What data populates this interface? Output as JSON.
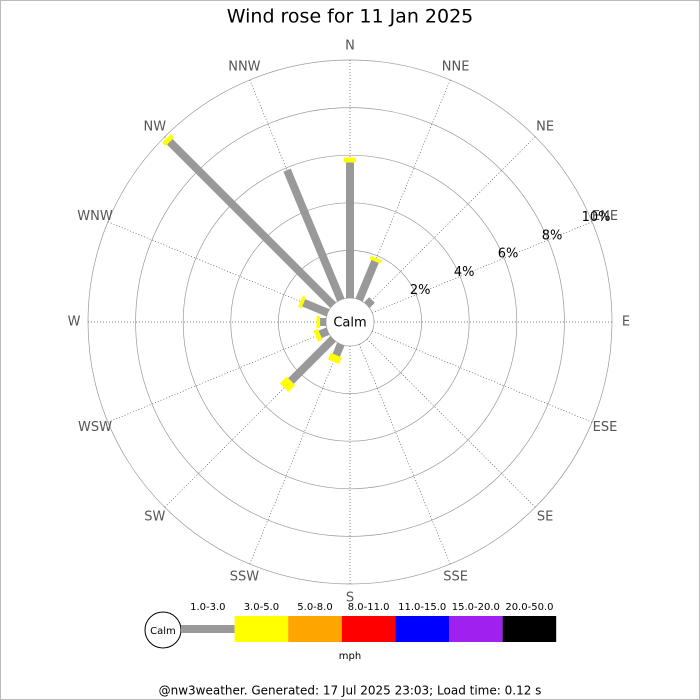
{
  "chart_data": {
    "type": "windrose",
    "title": "Wind rose for 11 Jan 2025",
    "directions": [
      "N",
      "NNE",
      "NE",
      "ENE",
      "E",
      "ESE",
      "SE",
      "SSE",
      "S",
      "SSW",
      "SW",
      "WSW",
      "W",
      "WNW",
      "NW",
      "NNW"
    ],
    "calm_label": "Calm",
    "rlim": [
      0,
      10
    ],
    "rticks": [
      {
        "value": 2,
        "label": "2%"
      },
      {
        "value": 4,
        "label": "4%"
      },
      {
        "value": 6,
        "label": "6%"
      },
      {
        "value": 8,
        "label": "8%"
      },
      {
        "value": 10,
        "label": "10%"
      }
    ],
    "series": [
      {
        "name": "1.0-3.0",
        "color": "#999999",
        "values": [
          5.7,
          1.75,
          0.3,
          0,
          0,
          0,
          0,
          0,
          0,
          0.5,
          2.5,
          0.35,
          0.25,
          1.1,
          9.7,
          5.9
        ]
      },
      {
        "name": "3.0-5.0",
        "color": "#ffff00",
        "values": [
          0.2,
          0.15,
          0,
          0,
          0,
          0,
          0,
          0,
          0,
          0.3,
          0.4,
          0.2,
          0.15,
          0.15,
          0.2,
          0
        ]
      },
      {
        "name": "5.0-8.0",
        "color": "#ffa500",
        "values": [
          0,
          0,
          0,
          0,
          0,
          0,
          0,
          0,
          0,
          0,
          0,
          0,
          0,
          0,
          0,
          0
        ]
      },
      {
        "name": "8.0-11.0",
        "color": "#ff0000",
        "values": [
          0,
          0,
          0,
          0,
          0,
          0,
          0,
          0,
          0,
          0,
          0,
          0,
          0,
          0,
          0,
          0
        ]
      },
      {
        "name": "11.0-15.0",
        "color": "#0000ff",
        "values": [
          0,
          0,
          0,
          0,
          0,
          0,
          0,
          0,
          0,
          0,
          0,
          0,
          0,
          0,
          0,
          0
        ]
      },
      {
        "name": "15.0-20.0",
        "color": "#a020f0",
        "values": [
          0,
          0,
          0,
          0,
          0,
          0,
          0,
          0,
          0,
          0,
          0,
          0,
          0,
          0,
          0,
          0
        ]
      },
      {
        "name": "20.0-50.0",
        "color": "#000000",
        "values": [
          0,
          0,
          0,
          0,
          0,
          0,
          0,
          0,
          0,
          0,
          0,
          0,
          0,
          0,
          0,
          0
        ]
      }
    ],
    "unit": "mph",
    "footer": "@nw3weather. Generated: 17 Jul 2025 23:03; Load time: 0.12 s"
  }
}
